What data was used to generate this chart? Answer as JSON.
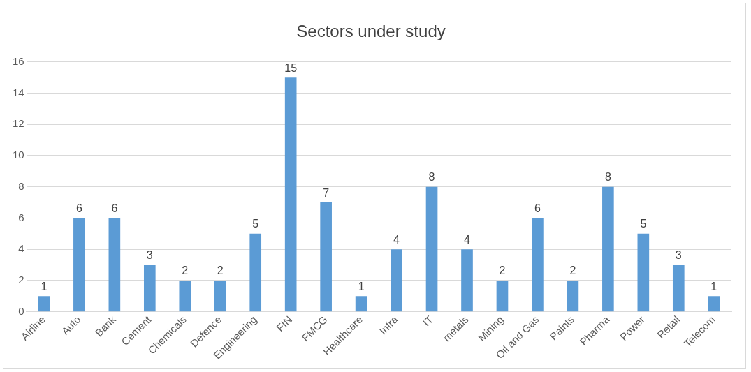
{
  "chart_data": {
    "type": "bar",
    "title": "Sectors under study",
    "categories": [
      "Airline",
      "Auto",
      "Bank",
      "Cement",
      "Chemicals",
      "Defence",
      "Engineering",
      "FIN",
      "FMCG",
      "Healthcare",
      "Infra",
      "IT",
      "metals",
      "Mining",
      "Oil and Gas",
      "Paints",
      "Pharma",
      "Power",
      "Retail",
      "Telecom"
    ],
    "values": [
      1,
      6,
      6,
      3,
      2,
      2,
      5,
      15,
      7,
      1,
      4,
      8,
      4,
      2,
      6,
      2,
      8,
      5,
      3,
      1
    ],
    "color": "#5b9bd5",
    "ylim": [
      0,
      16
    ],
    "yticks": [
      0,
      2,
      4,
      6,
      8,
      10,
      12,
      14,
      16
    ],
    "grid": "y",
    "data_labels": true
  }
}
